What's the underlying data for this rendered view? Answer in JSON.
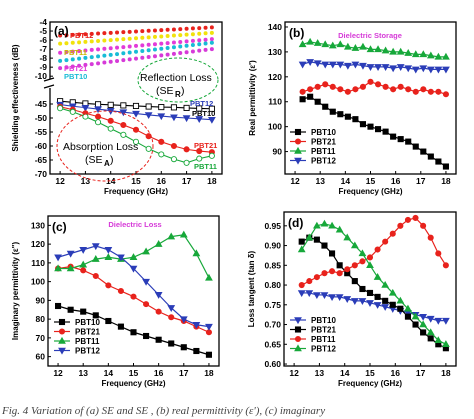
{
  "colors": {
    "PBT10": "#000000",
    "PBT21": "#e8221c",
    "PBT11": "#17a83a",
    "PBT12": "#2b3db8",
    "yellow": "#f1e20c",
    "magenta": "#e23bd9",
    "cyan": "#18bcd6",
    "pink": "#d63ad8"
  },
  "caption": "Fig. 4  Variation of (a) SE  and SE , (b) real permittivity (ε'), (c) imaginary",
  "chart_data": [
    {
      "id": "a",
      "type": "line",
      "panel_label": "(a)",
      "xlabel": "Frequency (GHz)",
      "ylabel": "Shielding effectiveness (dB)",
      "xlim": [
        11.6,
        18.4
      ],
      "xticks": [
        12,
        13,
        14,
        15,
        16,
        17,
        18
      ],
      "top_range": [
        -10.2,
        -4
      ],
      "top_ticks": [
        -4,
        -5,
        -6,
        -7,
        -8,
        -9,
        -10
      ],
      "bottom_range": [
        -70,
        -40
      ],
      "bottom_ticks": [
        -45,
        -50,
        -55,
        -60,
        -65,
        -70
      ],
      "legend_labels": {
        "PBT12_top": "PBT12",
        "PBT11_top": "PBT11",
        "PBT21_top": "PBT21",
        "PBT10_top": "PBT10",
        "PBT12_bot": "PBT12",
        "PBT10_bot": "PBT10",
        "PBT21_bot": "PBT21",
        "PBT11_bot": "PBT11"
      },
      "reflection_label": "Reflection Loss",
      "reflection_sub": "(SE",
      "reflection_sub2": "R",
      "reflection_end": ")",
      "absorption_label": "Absorption Loss",
      "absorption_sub": "(SE",
      "absorption_sub2": "A",
      "absorption_end": ")",
      "top_series": [
        {
          "key": "red",
          "color": "#e8221c",
          "x": [
            12,
            18
          ],
          "y": [
            -5.5,
            -4.6
          ]
        },
        {
          "key": "yellow",
          "color": "#f1e20c",
          "x": [
            12,
            18
          ],
          "y": [
            -6.4,
            -5.2
          ]
        },
        {
          "key": "magenta",
          "color": "#e23bd9",
          "x": [
            12,
            18
          ],
          "y": [
            -7.4,
            -5.9
          ]
        },
        {
          "key": "cyan",
          "color": "#18bcd6",
          "x": [
            12,
            18
          ],
          "y": [
            -8.3,
            -6.3
          ]
        },
        {
          "key": "pink",
          "color": "#d63ad8",
          "x": [
            12,
            18
          ],
          "y": [
            -9.1,
            -7.0
          ]
        }
      ],
      "bottom_series": [
        {
          "key": "PBT10",
          "color": "#000000",
          "filled": false,
          "x": [
            12,
            12.5,
            13,
            13.5,
            14,
            14.5,
            15,
            15.5,
            16,
            16.5,
            17,
            17.5,
            18
          ],
          "y": [
            -44,
            -44.4,
            -44.8,
            -45.1,
            -45.3,
            -45.5,
            -45.7,
            -45.9,
            -46.1,
            -46.2,
            -46.4,
            -46.6,
            -46.7
          ]
        },
        {
          "key": "PBT12",
          "color": "#2b3db8",
          "filled": true,
          "x": [
            12,
            12.5,
            13,
            13.5,
            14,
            14.5,
            15,
            15.5,
            16,
            16.5,
            17,
            17.5,
            18
          ],
          "y": [
            -45.2,
            -45.8,
            -46.3,
            -46.8,
            -47.4,
            -47.9,
            -48.4,
            -48.9,
            -49.3,
            -49.7,
            -50.0,
            -50.3,
            -50.6
          ]
        },
        {
          "key": "PBT21",
          "color": "#e8221c",
          "filled": true,
          "x": [
            12,
            12.5,
            13,
            13.5,
            14,
            14.5,
            15,
            15.5,
            16,
            16.5,
            17,
            17.5,
            18
          ],
          "y": [
            -46,
            -47,
            -48.3,
            -49.5,
            -51,
            -52.5,
            -54.2,
            -56.5,
            -58.5,
            -60,
            -61.2,
            -61.8,
            -62.2
          ]
        },
        {
          "key": "PBT11",
          "color": "#17a83a",
          "filled": false,
          "x": [
            12,
            12.5,
            13,
            13.5,
            14,
            14.5,
            15,
            15.5,
            16,
            16.5,
            17,
            17.5,
            18
          ],
          "y": [
            -46.5,
            -47.8,
            -49.5,
            -51.5,
            -53.8,
            -56,
            -58.5,
            -61,
            -63,
            -64.7,
            -66,
            -64.5,
            -63.5
          ]
        }
      ]
    },
    {
      "id": "b",
      "type": "line",
      "panel_label": "(b)",
      "title": "Dielectric Storage",
      "xlabel": "Frequency (GHz)",
      "ylabel": "Real permittivity (ε')",
      "xlim": [
        11.6,
        18.4
      ],
      "ylim": [
        81,
        142
      ],
      "xticks": [
        12,
        13,
        14,
        15,
        16,
        17,
        18
      ],
      "yticks": [
        90,
        100,
        110,
        120,
        130,
        140
      ],
      "legend": [
        "PBT10",
        "PBT21",
        "PBT11",
        "PBT12"
      ],
      "series": [
        {
          "name": "PBT10",
          "color": "#000000",
          "marker": "square",
          "x": [
            12.3,
            12.6,
            12.9,
            13.2,
            13.5,
            13.8,
            14.1,
            14.4,
            14.7,
            15,
            15.3,
            15.6,
            15.9,
            16.2,
            16.5,
            16.8,
            17.1,
            17.4,
            17.7,
            18
          ],
          "y": [
            111,
            112,
            110,
            108,
            106,
            105,
            104,
            103,
            101,
            100,
            99,
            98,
            96,
            95,
            94,
            92,
            90,
            88,
            86,
            84
          ]
        },
        {
          "name": "PBT21",
          "color": "#e8221c",
          "marker": "circle",
          "x": [
            12.3,
            12.6,
            12.9,
            13.2,
            13.5,
            13.8,
            14.1,
            14.4,
            14.7,
            15,
            15.3,
            15.6,
            15.9,
            16.2,
            16.5,
            16.8,
            17.1,
            17.4,
            17.7,
            18
          ],
          "y": [
            114,
            115,
            116,
            117,
            116,
            115,
            114,
            115,
            116,
            118,
            117,
            116,
            115,
            116,
            115,
            114,
            115,
            114,
            114,
            113
          ]
        },
        {
          "name": "PBT11",
          "color": "#17a83a",
          "marker": "triangle-up",
          "x": [
            12.3,
            12.6,
            12.9,
            13.2,
            13.5,
            13.8,
            14.1,
            14.4,
            14.7,
            15,
            15.3,
            15.6,
            15.9,
            16.2,
            16.5,
            16.8,
            17.1,
            17.4,
            17.7,
            18
          ],
          "y": [
            133,
            134,
            133.5,
            133,
            132.5,
            133,
            132,
            131.5,
            132,
            131,
            131,
            130.5,
            130,
            130,
            129.5,
            129,
            129,
            128.5,
            128,
            128
          ]
        },
        {
          "name": "PBT12",
          "color": "#2b3db8",
          "marker": "triangle-down",
          "x": [
            12.3,
            12.6,
            12.9,
            13.2,
            13.5,
            13.8,
            14.1,
            14.4,
            14.7,
            15,
            15.3,
            15.6,
            15.9,
            16.2,
            16.5,
            16.8,
            17.1,
            17.4,
            17.7,
            18
          ],
          "y": [
            125,
            126,
            125.5,
            125,
            125,
            125,
            124.5,
            125,
            124.5,
            124,
            124,
            124,
            123.5,
            124,
            123.5,
            123,
            123.5,
            123,
            123,
            123
          ]
        }
      ]
    },
    {
      "id": "c",
      "type": "line",
      "panel_label": "(c)",
      "title": "Dielectric Loss",
      "xlabel": "Frequency (GHz)",
      "ylabel": "Imaginary permittivity (ε\")",
      "xlim": [
        11.6,
        18.4
      ],
      "ylim": [
        55,
        135
      ],
      "xticks": [
        12,
        13,
        14,
        15,
        16,
        17,
        18
      ],
      "yticks": [
        60,
        70,
        80,
        90,
        100,
        110,
        120,
        130
      ],
      "legend": [
        "PBT10",
        "PBT21",
        "PBT11",
        "PBT12"
      ],
      "series": [
        {
          "name": "PBT10",
          "color": "#000000",
          "marker": "square",
          "x": [
            12,
            12.5,
            13,
            13.5,
            14,
            14.5,
            15,
            15.5,
            16,
            16.5,
            17,
            17.5,
            18
          ],
          "y": [
            87,
            85,
            84,
            82,
            79,
            76,
            73,
            71,
            69,
            67,
            65,
            63,
            61
          ]
        },
        {
          "name": "PBT21",
          "color": "#e8221c",
          "marker": "circle",
          "x": [
            12,
            12.5,
            13,
            13.5,
            14,
            14.5,
            15,
            15.5,
            16,
            16.5,
            17,
            17.5,
            18
          ],
          "y": [
            107,
            108,
            106,
            103,
            98,
            95,
            92,
            88,
            84,
            81,
            79,
            76,
            73
          ]
        },
        {
          "name": "PBT11",
          "color": "#17a83a",
          "marker": "triangle-up",
          "x": [
            12,
            12.5,
            13,
            13.5,
            14,
            14.5,
            15,
            15.5,
            16,
            16.5,
            17,
            17.5,
            18
          ],
          "y": [
            107,
            107,
            109,
            112,
            113,
            112,
            113,
            116,
            120,
            124,
            125,
            115,
            102
          ]
        },
        {
          "name": "PBT12",
          "color": "#2b3db8",
          "marker": "triangle-down",
          "x": [
            12,
            12.5,
            13,
            13.5,
            14,
            14.5,
            15,
            15.5,
            16,
            16.5,
            17,
            17.5,
            18
          ],
          "y": [
            113,
            115,
            117,
            119,
            117,
            113,
            107,
            100,
            93,
            86,
            80,
            77,
            76
          ]
        }
      ]
    },
    {
      "id": "d",
      "type": "line",
      "panel_label": "(d)",
      "xlabel": "Frequency (GHz)",
      "ylabel": "Loss tangent (tan δ)",
      "xlim": [
        11.6,
        18.4
      ],
      "ylim": [
        0.595,
        0.985
      ],
      "xticks": [
        12,
        13,
        14,
        15,
        16,
        17,
        18
      ],
      "yticks": [
        0.6,
        0.65,
        0.7,
        0.75,
        0.8,
        0.85,
        0.9,
        0.95
      ],
      "legend": [
        "PBT10",
        "PBT21",
        "PBT11",
        "PBT12"
      ],
      "series": [
        {
          "name": "PBT10",
          "color": "#2b3db8",
          "marker": "triangle-down",
          "x": [
            12.3,
            12.6,
            12.9,
            13.2,
            13.5,
            13.8,
            14.1,
            14.4,
            14.7,
            15,
            15.3,
            15.6,
            15.9,
            16.2,
            16.5,
            16.8,
            17.1,
            17.4,
            17.7,
            18
          ],
          "y": [
            0.78,
            0.78,
            0.775,
            0.775,
            0.77,
            0.77,
            0.765,
            0.76,
            0.76,
            0.755,
            0.75,
            0.745,
            0.74,
            0.735,
            0.73,
            0.725,
            0.72,
            0.715,
            0.71,
            0.71
          ]
        },
        {
          "name": "PBT21",
          "color": "#000000",
          "marker": "square",
          "x": [
            12.3,
            12.6,
            12.9,
            13.2,
            13.5,
            13.8,
            14.1,
            14.4,
            14.7,
            15,
            15.3,
            15.6,
            15.9,
            16.2,
            16.5,
            16.8,
            17.1,
            17.4,
            17.7,
            18
          ],
          "y": [
            0.91,
            0.92,
            0.915,
            0.9,
            0.88,
            0.85,
            0.83,
            0.81,
            0.79,
            0.78,
            0.77,
            0.76,
            0.75,
            0.74,
            0.72,
            0.7,
            0.68,
            0.665,
            0.65,
            0.64
          ]
        },
        {
          "name": "PBT11",
          "color": "#e8221c",
          "marker": "circle",
          "x": [
            12.3,
            12.6,
            12.9,
            13.2,
            13.5,
            13.8,
            14.1,
            14.4,
            14.7,
            15,
            15.3,
            15.6,
            15.9,
            16.2,
            16.5,
            16.8,
            17.1,
            17.4,
            17.7,
            18
          ],
          "y": [
            0.8,
            0.81,
            0.82,
            0.83,
            0.835,
            0.83,
            0.84,
            0.85,
            0.86,
            0.87,
            0.89,
            0.91,
            0.93,
            0.95,
            0.965,
            0.97,
            0.95,
            0.92,
            0.88,
            0.85
          ]
        },
        {
          "name": "PBT12",
          "color": "#17a83a",
          "marker": "triangle-up",
          "x": [
            12.3,
            12.6,
            12.9,
            13.2,
            13.5,
            13.8,
            14.1,
            14.4,
            14.7,
            15,
            15.3,
            15.6,
            15.9,
            16.2,
            16.5,
            16.8,
            17.1,
            17.4,
            17.7,
            18
          ],
          "y": [
            0.89,
            0.92,
            0.95,
            0.955,
            0.95,
            0.94,
            0.92,
            0.9,
            0.88,
            0.85,
            0.82,
            0.8,
            0.78,
            0.76,
            0.74,
            0.72,
            0.7,
            0.68,
            0.66,
            0.65
          ]
        }
      ]
    }
  ]
}
